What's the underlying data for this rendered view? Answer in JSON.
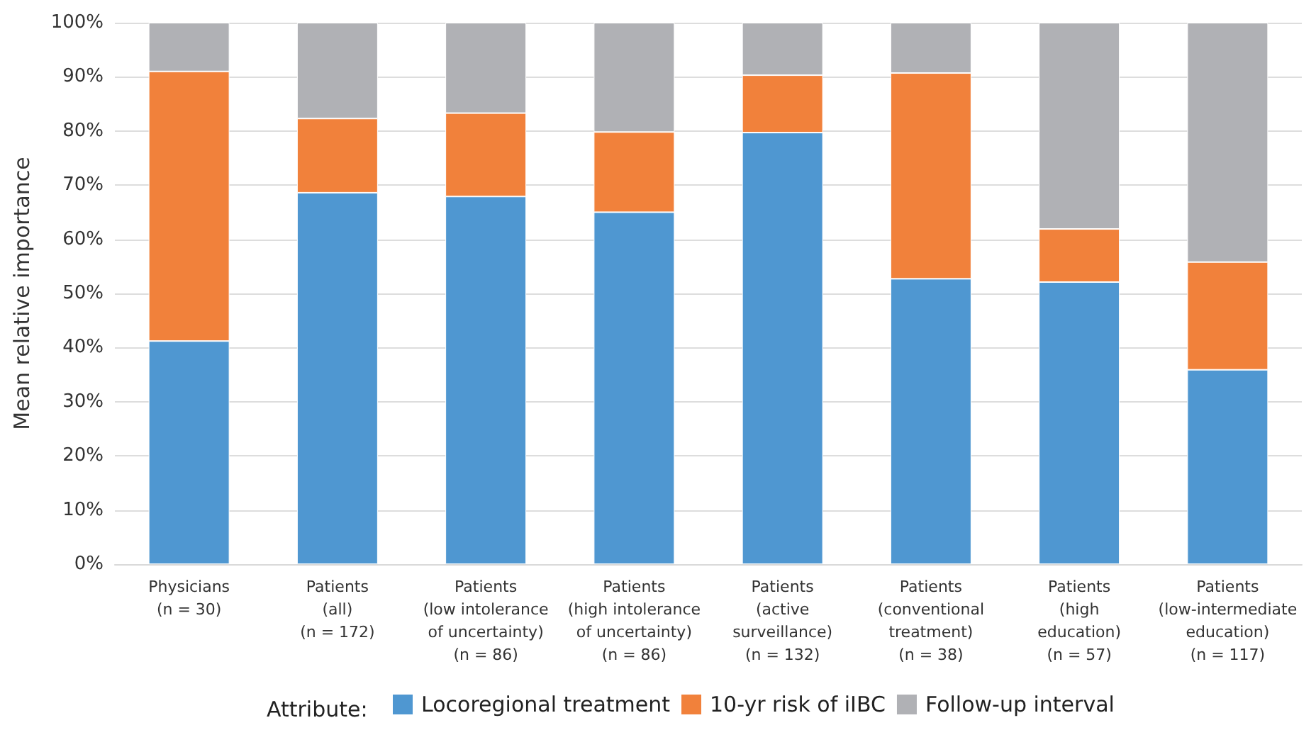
{
  "chart_data": {
    "type": "bar",
    "stacked": true,
    "ylabel": "Mean relative importance",
    "legend_title": "Attribute:",
    "legend": "bottom",
    "grid": "y",
    "categories": [
      "Physicians\n(n = 30)",
      "Patients\n(all)\n(n = 172)",
      "Patients\n(low intolerance\nof uncertainty)\n(n = 86)",
      "Patients\n(high intolerance\nof uncertainty)\n(n = 86)",
      "Patients\n(active\nsurveillance)\n(n = 132)",
      "Patients\n(conventional\ntreatment)\n(n = 38)",
      "Patients\n(high\neducation)\n(n = 57)",
      "Patients\n(low-intermediate\neducation)\n(n = 117)"
    ],
    "series": [
      {
        "name": "Locoregional treatment",
        "color": "#4f97d1",
        "values": [
          41.2,
          68.6,
          67.9,
          65.0,
          79.7,
          52.7,
          52.1,
          35.9
        ]
      },
      {
        "name": "10-yr risk of iIBC",
        "color": "#f1813b",
        "values": [
          49.8,
          13.7,
          15.4,
          14.8,
          10.6,
          38.0,
          9.8,
          19.9
        ]
      },
      {
        "name": "Follow-up interval",
        "color": "#b0b1b5",
        "values": [
          9.0,
          17.7,
          16.7,
          20.2,
          9.7,
          9.3,
          38.1,
          44.2
        ]
      }
    ],
    "ylim": [
      0,
      100
    ],
    "yticks": [
      {
        "value": 0,
        "label": "0%"
      },
      {
        "value": 10,
        "label": "10%"
      },
      {
        "value": 20,
        "label": "20%"
      },
      {
        "value": 30,
        "label": "30%"
      },
      {
        "value": 40,
        "label": "40%"
      },
      {
        "value": 50,
        "label": "50%"
      },
      {
        "value": 60,
        "label": "60%"
      },
      {
        "value": 70,
        "label": "70%"
      },
      {
        "value": 80,
        "label": "80%"
      },
      {
        "value": 90,
        "label": "90%"
      },
      {
        "value": 100,
        "label": "100%"
      }
    ]
  }
}
